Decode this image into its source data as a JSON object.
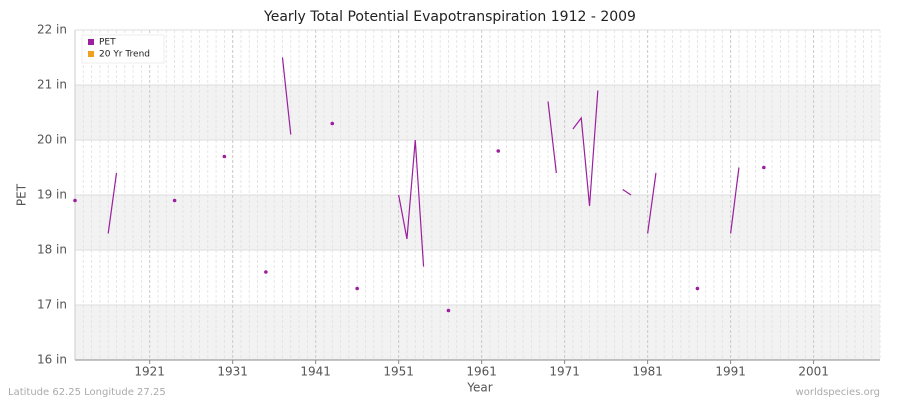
{
  "chart_data": {
    "type": "line",
    "title": "Yearly Total Potential Evapotranspiration 1912 - 2009",
    "x_label": "Year",
    "y_label": "PET",
    "footer_left": "Latitude 62.25 Longitude 27.25",
    "footer_right": "worldspecies.org",
    "x": [
      1912,
      1913,
      1914,
      1915,
      1916,
      1917,
      1918,
      1919,
      1920,
      1921,
      1922,
      1923,
      1924,
      1925,
      1926,
      1927,
      1928,
      1929,
      1930,
      1931,
      1932,
      1933,
      1934,
      1935,
      1936,
      1937,
      1938,
      1939,
      1940,
      1941,
      1942,
      1943,
      1944,
      1945,
      1946,
      1947,
      1948,
      1949,
      1950,
      1951,
      1952,
      1953,
      1954,
      1955,
      1956,
      1957,
      1958,
      1959,
      1960,
      1961,
      1962,
      1963,
      1964,
      1965,
      1966,
      1967,
      1968,
      1969,
      1970,
      1971,
      1972,
      1973,
      1974,
      1975,
      1976,
      1977,
      1978,
      1979,
      1980,
      1981,
      1982,
      1983,
      1984,
      1985,
      1986,
      1987,
      1988,
      1989,
      1990,
      1991,
      1992,
      1993,
      1994,
      1995,
      1996,
      1997,
      1998,
      1999,
      2000,
      2001,
      2002,
      2003,
      2004,
      2005,
      2006,
      2007,
      2008,
      2009
    ],
    "series": [
      {
        "name": "PET",
        "color": "#9b1f9f",
        "values": [
          18.9,
          null,
          null,
          null,
          18.3,
          19.4,
          null,
          null,
          null,
          null,
          null,
          null,
          18.9,
          null,
          null,
          null,
          null,
          null,
          19.7,
          null,
          null,
          null,
          null,
          17.6,
          null,
          21.5,
          20.1,
          null,
          null,
          null,
          null,
          20.3,
          null,
          null,
          17.3,
          null,
          null,
          null,
          null,
          19.0,
          18.2,
          20.0,
          17.7,
          null,
          null,
          16.9,
          null,
          null,
          null,
          null,
          null,
          19.8,
          null,
          null,
          null,
          null,
          null,
          20.7,
          19.4,
          null,
          20.2,
          20.4,
          18.8,
          20.9,
          null,
          null,
          19.1,
          19.0,
          null,
          18.3,
          19.4,
          null,
          null,
          null,
          null,
          17.3,
          null,
          null,
          null,
          18.3,
          19.5,
          null,
          null,
          19.5,
          null,
          null,
          null,
          null,
          null,
          null,
          null,
          null,
          null,
          null,
          null,
          null,
          null,
          null
        ]
      }
    ],
    "trend": {
      "name": "20 Yr Trend",
      "color": "#f0a020"
    },
    "xlim": [
      1912,
      2009
    ],
    "xticks": [
      1921,
      1931,
      1941,
      1951,
      1961,
      1971,
      1981,
      1991,
      2001
    ],
    "ylim": [
      16,
      22
    ],
    "yticks": [
      {
        "value": 16,
        "label": "16 in"
      },
      {
        "value": 17,
        "label": "17 in"
      },
      {
        "value": 18,
        "label": "18 in"
      },
      {
        "value": 19,
        "label": "19 in"
      },
      {
        "value": 20,
        "label": "20 in"
      },
      {
        "value": 21,
        "label": "21 in"
      },
      {
        "value": 22,
        "label": "22 in"
      }
    ],
    "grid": true,
    "legend": "upper left"
  }
}
